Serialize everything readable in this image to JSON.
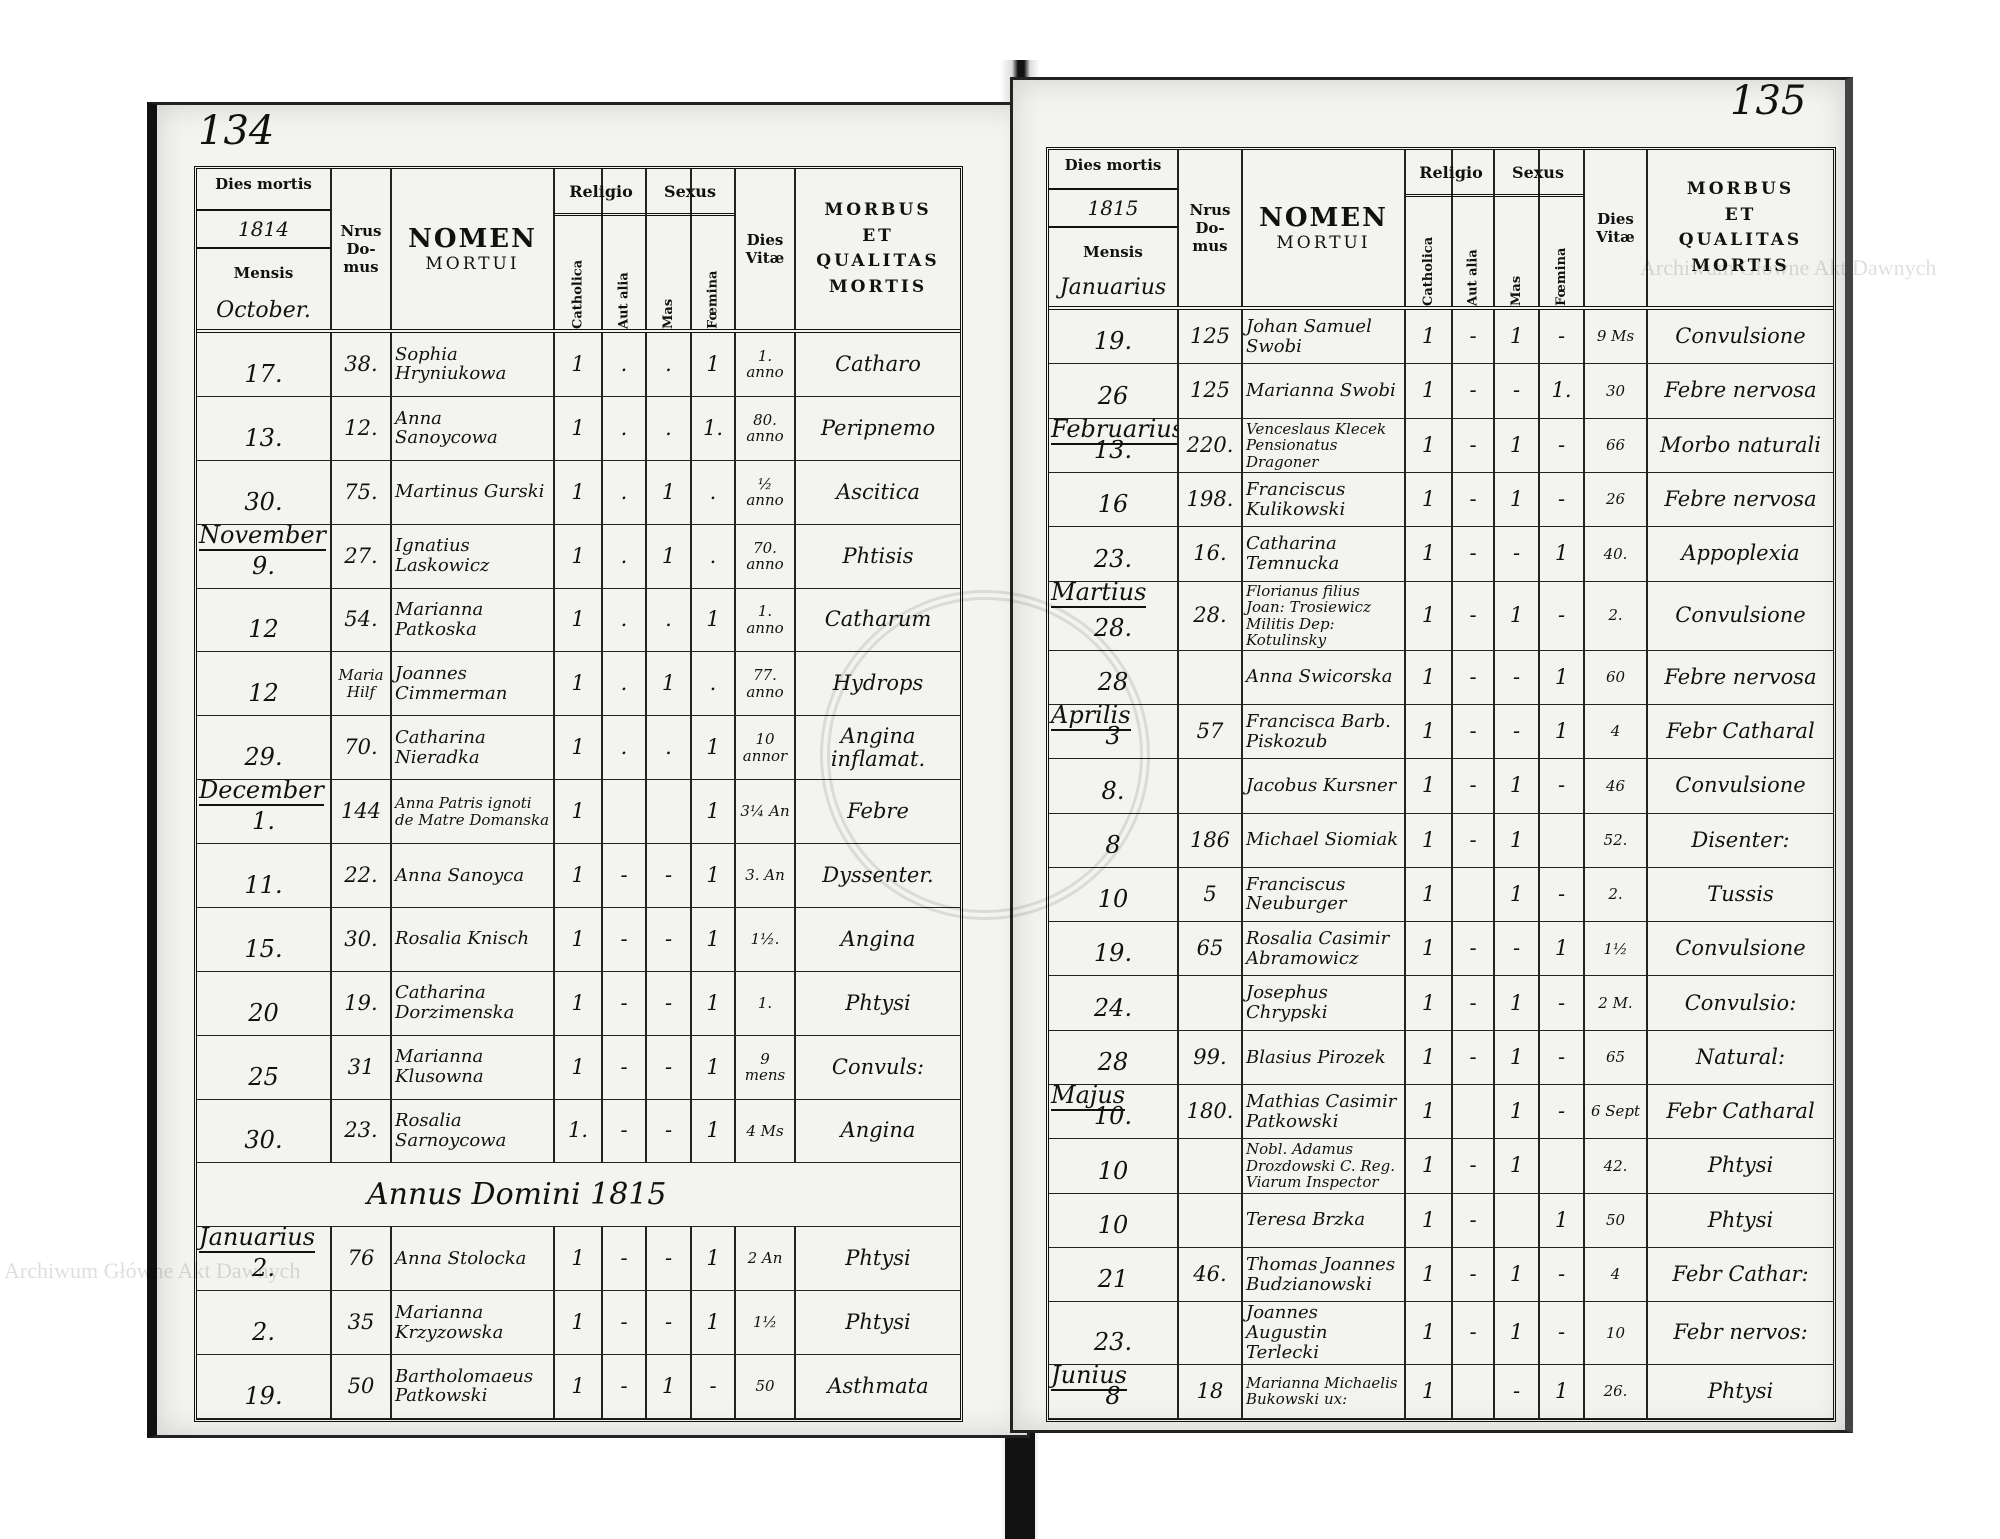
{
  "watermark": "Archiwum Główne Akt Dawnych",
  "header": {
    "dies_mortis": "Dies mortis",
    "mensis": "Mensis",
    "nrus": "Nrus",
    "domus1": "Do-",
    "domus2": "mus",
    "nomen": "NOMEN",
    "mortui": "MORTUI",
    "religio": "Religio",
    "catholica": "Catholica",
    "aut_alia": "Aut alia",
    "sexus": "Sexus",
    "mas": "Mas",
    "foemina": "Fœmina",
    "dies": "Dies",
    "vitae": "Vitæ",
    "morbus": "MORBUS",
    "et": "ET",
    "qualitas": "QUALITAS",
    "mortis": "MORTIS"
  },
  "left": {
    "page_number": "134",
    "year": "1814",
    "first_month": "October.",
    "rows": [
      {
        "day": "17.",
        "domus": "38.",
        "name": "Sophia Hryniukowa",
        "cath": "1",
        "alia": ".",
        "mas": ".",
        "fem": "1",
        "vitae": "1. anno",
        "morbus": "Catharo"
      },
      {
        "day": "13.",
        "domus": "12.",
        "name": "Anna Sanoycowa",
        "cath": "1",
        "alia": ".",
        "mas": ".",
        "fem": "1.",
        "vitae": "80. anno",
        "morbus": "Peripnemo"
      },
      {
        "day": "30.",
        "domus": "75.",
        "name": "Martinus Gurski",
        "cath": "1",
        "alia": ".",
        "mas": "1",
        "fem": ".",
        "vitae": "½ anno",
        "morbus": "Ascitica"
      },
      {
        "month": "November",
        "day": "9.",
        "domus": "27.",
        "name": "Ignatius Laskowicz",
        "cath": "1",
        "alia": ".",
        "mas": "1",
        "fem": ".",
        "vitae": "70. anno",
        "morbus": "Phtisis"
      },
      {
        "day": "12",
        "domus": "54.",
        "name": "Marianna Patkoska",
        "cath": "1",
        "alia": ".",
        "mas": ".",
        "fem": "1",
        "vitae": "1. anno",
        "morbus": "Catharum"
      },
      {
        "day": "12",
        "domus": "Maria Hilf",
        "name": "Joannes Cimmerman",
        "cath": "1",
        "alia": ".",
        "mas": "1",
        "fem": ".",
        "vitae": "77. anno",
        "morbus": "Hydrops"
      },
      {
        "day": "29.",
        "domus": "70.",
        "name": "Catharina Nieradka",
        "cath": "1",
        "alia": ".",
        "mas": ".",
        "fem": "1",
        "vitae": "10 annor",
        "morbus": "Angina inflamat."
      },
      {
        "month": "December",
        "day": "1.",
        "domus": "144",
        "name": "Anna Patris ignoti de Matre Domanska",
        "cath": "1",
        "alia": "",
        "mas": "",
        "fem": "1",
        "vitae": "3¼ An",
        "morbus": "Febre"
      },
      {
        "day": "11.",
        "domus": "22.",
        "name": "Anna Sanoyca",
        "cath": "1",
        "alia": "-",
        "mas": "-",
        "fem": "1",
        "vitae": "3. An",
        "morbus": "Dyssenter."
      },
      {
        "day": "15.",
        "domus": "30.",
        "name": "Rosalia Knisch",
        "cath": "1",
        "alia": "-",
        "mas": "-",
        "fem": "1",
        "vitae": "1½.",
        "morbus": "Angina"
      },
      {
        "day": "20",
        "domus": "19.",
        "name": "Catharina Dorzimenska",
        "cath": "1",
        "alia": "-",
        "mas": "-",
        "fem": "1",
        "vitae": "1.",
        "morbus": "Phtysi"
      },
      {
        "day": "25",
        "domus": "31",
        "name": "Marianna Klusowna",
        "cath": "1",
        "alia": "-",
        "mas": "-",
        "fem": "1",
        "vitae": "9 mens",
        "morbus": "Convuls:"
      },
      {
        "day": "30.",
        "domus": "23.",
        "name": "Rosalia Sarnoycowa",
        "cath": "1.",
        "alia": "-",
        "mas": "-",
        "fem": "1",
        "vitae": "4 Ms",
        "morbus": "Angina"
      },
      {
        "span": "Annus Domini 1815"
      },
      {
        "month": "Januarius",
        "day": "2.",
        "domus": "76",
        "name": "Anna Stolocka",
        "cath": "1",
        "alia": "-",
        "mas": "-",
        "fem": "1",
        "vitae": "2 An",
        "morbus": "Phtysi"
      },
      {
        "day": "2.",
        "domus": "35",
        "name": "Marianna Krzyzowska",
        "cath": "1",
        "alia": "-",
        "mas": "-",
        "fem": "1",
        "vitae": "1½",
        "morbus": "Phtysi"
      },
      {
        "day": "19.",
        "domus": "50",
        "name": "Bartholomaeus Patkowski",
        "cath": "1",
        "alia": "-",
        "mas": "1",
        "fem": "-",
        "vitae": "50",
        "morbus": "Asthmata"
      }
    ]
  },
  "right": {
    "page_number": "135",
    "year": "1815",
    "first_month": "Januarius",
    "rows": [
      {
        "day": "19.",
        "domus": "125",
        "name": "Johan Samuel Swobi",
        "cath": "1",
        "alia": "-",
        "mas": "1",
        "fem": "-",
        "vitae": "9 Ms",
        "morbus": "Convulsione"
      },
      {
        "day": "26",
        "domus": "125",
        "name": "Marianna Swobi",
        "cath": "1",
        "alia": "-",
        "mas": "-",
        "fem": "1.",
        "vitae": "30",
        "morbus": "Febre nervosa"
      },
      {
        "month": "Februarius",
        "day": "13.",
        "domus": "220.",
        "name": "Venceslaus Klecek Pensionatus Dragoner",
        "cath": "1",
        "alia": "-",
        "mas": "1",
        "fem": "-",
        "vitae": "66",
        "morbus": "Morbo naturali"
      },
      {
        "day": "16",
        "domus": "198.",
        "name": "Franciscus Kulikowski",
        "cath": "1",
        "alia": "-",
        "mas": "1",
        "fem": "-",
        "vitae": "26",
        "morbus": "Febre nervosa"
      },
      {
        "day": "23.",
        "domus": "16.",
        "name": "Catharina Temnucka",
        "cath": "1",
        "alia": "-",
        "mas": "-",
        "fem": "1",
        "vitae": "40.",
        "morbus": "Appoplexia"
      },
      {
        "month": "Martius",
        "day": "28.",
        "domus": "28.",
        "name": "Florianus filius Joan: Trosiewicz Militis Dep: Kotulinsky",
        "cath": "1",
        "alia": "-",
        "mas": "1",
        "fem": "-",
        "vitae": "2.",
        "morbus": "Convulsione"
      },
      {
        "day": "28",
        "domus": "",
        "name": "Anna Swicorska",
        "cath": "1",
        "alia": "-",
        "mas": "-",
        "fem": "1",
        "vitae": "60",
        "morbus": "Febre nervosa"
      },
      {
        "month": "Aprilis",
        "day": "3",
        "domus": "57",
        "name": "Francisca Barb. Piskozub",
        "cath": "1",
        "alia": "-",
        "mas": "-",
        "fem": "1",
        "vitae": "4",
        "morbus": "Febr Catharal"
      },
      {
        "day": "8.",
        "domus": "",
        "name": "Jacobus Kursner",
        "cath": "1",
        "alia": "-",
        "mas": "1",
        "fem": "-",
        "vitae": "46",
        "morbus": "Convulsione"
      },
      {
        "day": "8",
        "domus": "186",
        "name": "Michael Siomiak",
        "cath": "1",
        "alia": "-",
        "mas": "1",
        "fem": "",
        "vitae": "52.",
        "morbus": "Disenter:"
      },
      {
        "day": "10",
        "domus": "5",
        "name": "Franciscus Neuburger",
        "cath": "1",
        "alia": "",
        "mas": "1",
        "fem": "-",
        "vitae": "2.",
        "morbus": "Tussis"
      },
      {
        "day": "19.",
        "domus": "65",
        "name": "Rosalia Casimir Abramowicz",
        "cath": "1",
        "alia": "-",
        "mas": "-",
        "fem": "1",
        "vitae": "1½",
        "morbus": "Convulsione"
      },
      {
        "day": "24.",
        "domus": "",
        "name": "Josephus Chrypski",
        "cath": "1",
        "alia": "-",
        "mas": "1",
        "fem": "-",
        "vitae": "2 M.",
        "morbus": "Convulsio:"
      },
      {
        "day": "28",
        "domus": "99.",
        "name": "Blasius Pirozek",
        "cath": "1",
        "alia": "-",
        "mas": "1",
        "fem": "-",
        "vitae": "65",
        "morbus": "Natural:"
      },
      {
        "month": "Majus",
        "day": "10.",
        "domus": "180.",
        "name": "Mathias Casimir Patkowski",
        "cath": "1",
        "alia": "",
        "mas": "1",
        "fem": "-",
        "vitae": "6 Sept",
        "morbus": "Febr Catharal"
      },
      {
        "day": "10",
        "domus": "",
        "name": "Nobl. Adamus Drozdowski C. Reg. Viarum Inspector",
        "cath": "1",
        "alia": "-",
        "mas": "1",
        "fem": "",
        "vitae": "42.",
        "morbus": "Phtysi"
      },
      {
        "day": "10",
        "domus": "",
        "name": "Teresa Brzka",
        "cath": "1",
        "alia": "-",
        "mas": "",
        "fem": "1",
        "vitae": "50",
        "morbus": "Phtysi"
      },
      {
        "day": "21",
        "domus": "46.",
        "name": "Thomas Joannes Budzianowski",
        "cath": "1",
        "alia": "-",
        "mas": "1",
        "fem": "-",
        "vitae": "4",
        "morbus": "Febr Cathar:"
      },
      {
        "day": "23.",
        "domus": "",
        "name": "Joannes Augustin Terlecki",
        "cath": "1",
        "alia": "-",
        "mas": "1",
        "fem": "-",
        "vitae": "10",
        "morbus": "Febr nervos:"
      },
      {
        "month": "Junius",
        "day": "8",
        "domus": "18",
        "name": "Marianna Michaelis Bukowski ux:",
        "cath": "1",
        "alia": "",
        "mas": "-",
        "fem": "1",
        "vitae": "26.",
        "morbus": "Phtysi"
      }
    ]
  }
}
